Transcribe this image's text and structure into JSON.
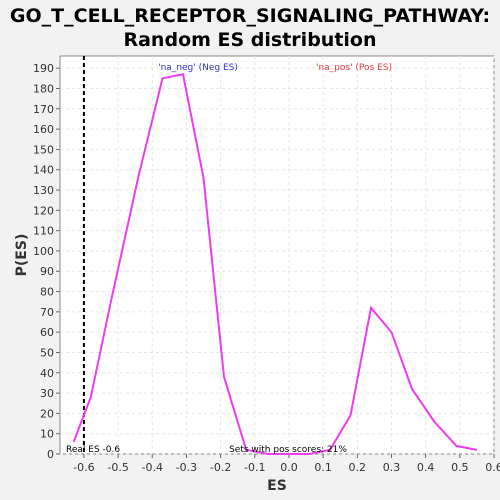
{
  "chart_data": {
    "type": "line",
    "title_line1": "GO_T_CELL_RECEPTOR_SIGNALING_PATHWAY:",
    "title_line2": "Random ES distribution",
    "xlabel": "ES",
    "ylabel": "P(ES)",
    "xlim": [
      -0.67,
      0.6
    ],
    "ylim": [
      0,
      196
    ],
    "xticks": [
      -0.6,
      -0.5,
      -0.4,
      -0.3,
      -0.2,
      -0.1,
      0.0,
      0.1,
      0.2,
      0.3,
      0.4,
      0.5,
      0.6
    ],
    "xtick_labels": [
      "-0.6",
      "-0.5",
      "-0.4",
      "-0.3",
      "-0.2",
      "-0.1",
      "0.0",
      "0.1",
      "0.2",
      "0.3",
      "0.4",
      "0.5",
      "0.6"
    ],
    "yticks": [
      0,
      10,
      20,
      30,
      40,
      50,
      60,
      70,
      80,
      90,
      100,
      110,
      120,
      130,
      140,
      150,
      160,
      170,
      180,
      190
    ],
    "grid": true,
    "series_color": "#ee3cf0",
    "x": [
      -0.63,
      -0.58,
      -0.52,
      -0.44,
      -0.37,
      -0.31,
      -0.25,
      -0.19,
      -0.125,
      -0.06,
      0.0,
      0.06,
      0.12,
      0.18,
      0.24,
      0.3,
      0.36,
      0.425,
      0.49,
      0.55
    ],
    "y": [
      6,
      28,
      76,
      137,
      185,
      187,
      136,
      38,
      2,
      0,
      0,
      0,
      2,
      19,
      72,
      60,
      32,
      16,
      4,
      2
    ],
    "real_es": -0.6,
    "real_es_label": "Real ES -0.6",
    "pos_scores_label": "Sets with pos scores: 21%",
    "legend_neg": "'na_neg' (Neg ES)",
    "legend_neg_color": "#3333cc",
    "legend_pos": "'na_pos' (Pos ES)",
    "legend_pos_color": "#e83a3a"
  }
}
